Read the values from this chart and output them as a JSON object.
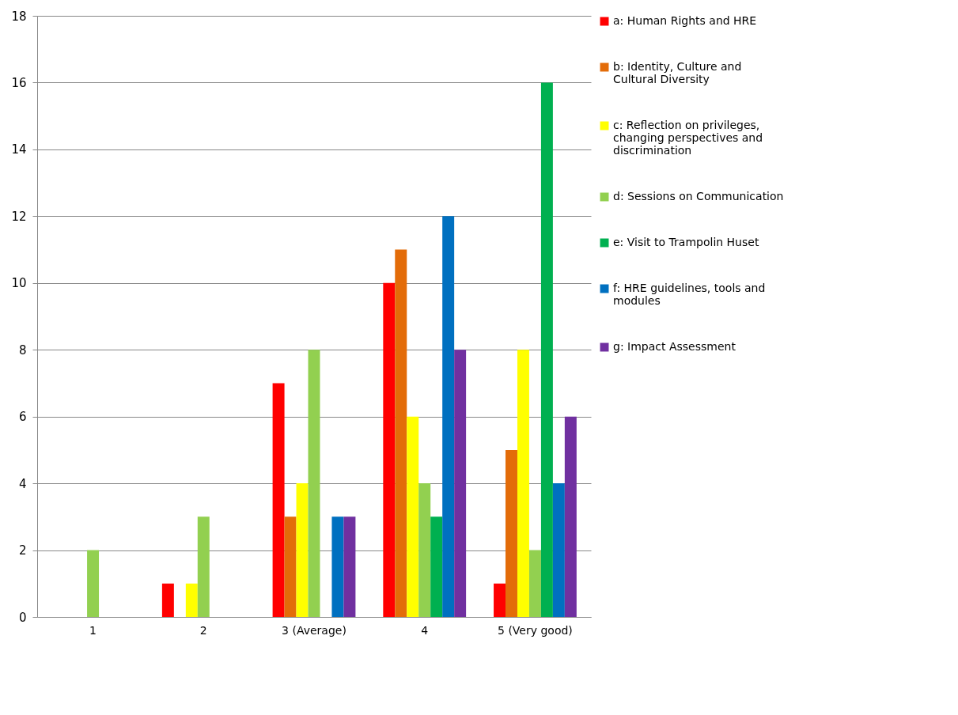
{
  "chart_data": {
    "type": "bar",
    "categories": [
      "1",
      "2",
      "3 (Average)",
      "4",
      "5 (Very good)"
    ],
    "series": [
      {
        "name": "a: Human Rights and HRE",
        "color": "#ff0000",
        "values": [
          0,
          1,
          7,
          10,
          1
        ]
      },
      {
        "name": "b: Identity, Culture and Cultural Diversity",
        "color": "#e36c09",
        "values": [
          0,
          0,
          3,
          11,
          5
        ]
      },
      {
        "name": "c: Reflection on privileges, changing perspectives and discrimination",
        "color": "#ffff00",
        "values": [
          0,
          1,
          4,
          6,
          8
        ]
      },
      {
        "name": "d: Sessions on Communication",
        "color": "#92d050",
        "values": [
          2,
          3,
          8,
          4,
          2
        ]
      },
      {
        "name": "e: Visit to Trampolin Huset",
        "color": "#00b050",
        "values": [
          0,
          0,
          0,
          3,
          16
        ]
      },
      {
        "name": "f: HRE guidelines, tools and modules",
        "color": "#0070c0",
        "values": [
          0,
          0,
          3,
          12,
          4
        ]
      },
      {
        "name": "g: Impact Assessment",
        "color": "#7030a0",
        "values": [
          0,
          0,
          3,
          8,
          6
        ]
      }
    ],
    "ylim": [
      0,
      18
    ],
    "yticks": [
      0,
      2,
      4,
      6,
      8,
      10,
      12,
      14,
      16,
      18
    ],
    "grid": "y",
    "legend": "right"
  }
}
